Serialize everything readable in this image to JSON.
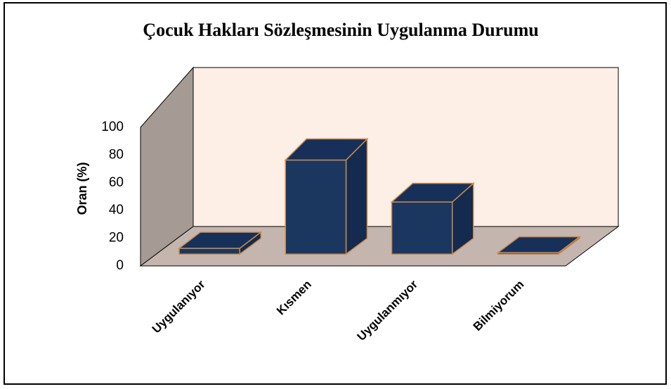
{
  "chart_data": {
    "type": "bar3d",
    "title": "Çocuk Hakları Sözleşmesinin Uygulanma Durumu",
    "y_label": "Oran (%)",
    "categories": [
      "Uygulanıyor",
      "Kısmen",
      "Uygulanmıyor",
      "Bilmiyorum"
    ],
    "values": [
      4,
      65,
      36,
      1
    ],
    "color": "#1b3760",
    "ylim": [
      0,
      100
    ],
    "yticks": [
      0,
      20,
      40,
      60,
      80,
      100
    ],
    "grid": false
  }
}
